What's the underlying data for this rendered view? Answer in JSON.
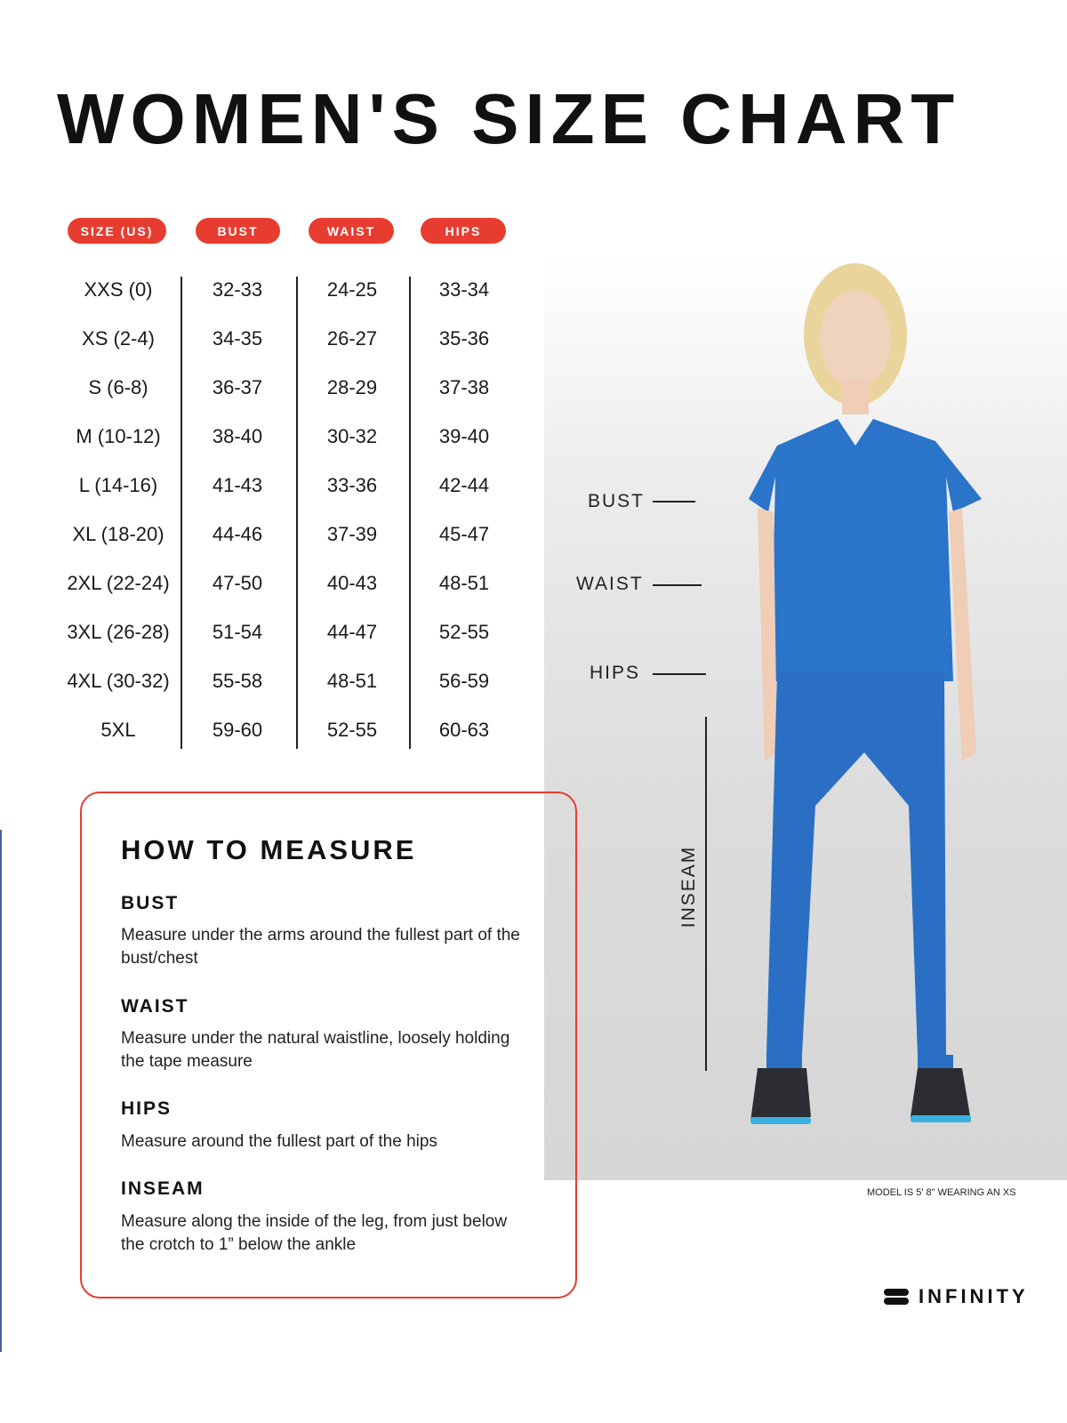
{
  "title": "WOMEN'S SIZE CHART",
  "table": {
    "headers": [
      "SIZE (US)",
      "BUST",
      "WAIST",
      "HIPS"
    ],
    "rows": [
      [
        "XXS (0)",
        "32-33",
        "24-25",
        "33-34"
      ],
      [
        "XS (2-4)",
        "34-35",
        "26-27",
        "35-36"
      ],
      [
        "S (6-8)",
        "36-37",
        "28-29",
        "37-38"
      ],
      [
        "M (10-12)",
        "38-40",
        "30-32",
        "39-40"
      ],
      [
        "L (14-16)",
        "41-43",
        "33-36",
        "42-44"
      ],
      [
        "XL (18-20)",
        "44-46",
        "37-39",
        "45-47"
      ],
      [
        "2XL (22-24)",
        "47-50",
        "40-43",
        "48-51"
      ],
      [
        "3XL (26-28)",
        "51-54",
        "44-47",
        "52-55"
      ],
      [
        "4XL (30-32)",
        "55-58",
        "48-51",
        "56-59"
      ],
      [
        "5XL",
        "59-60",
        "52-55",
        "60-63"
      ]
    ]
  },
  "model_labels": {
    "bust": "BUST",
    "waist": "WAIST",
    "hips": "HIPS",
    "inseam": "INSEAM"
  },
  "model_caption": "MODEL IS 5' 8\" WEARING AN XS",
  "how_to_measure": {
    "heading": "HOW TO MEASURE",
    "items": [
      {
        "title": "BUST",
        "text": "Measure under the arms around the fullest part of the bust/chest"
      },
      {
        "title": "WAIST",
        "text": "Measure under the natural waistline, loosely holding the tape measure"
      },
      {
        "title": "HIPS",
        "text": "Measure around the fullest part of the hips"
      },
      {
        "title": "INSEAM",
        "text": "Measure along the inside of the leg, from just below the crotch to 1” below the ankle"
      }
    ]
  },
  "brand": "INFINITY",
  "colors": {
    "accent": "#e63d30",
    "scrubs_blue": "#2a74c9"
  }
}
